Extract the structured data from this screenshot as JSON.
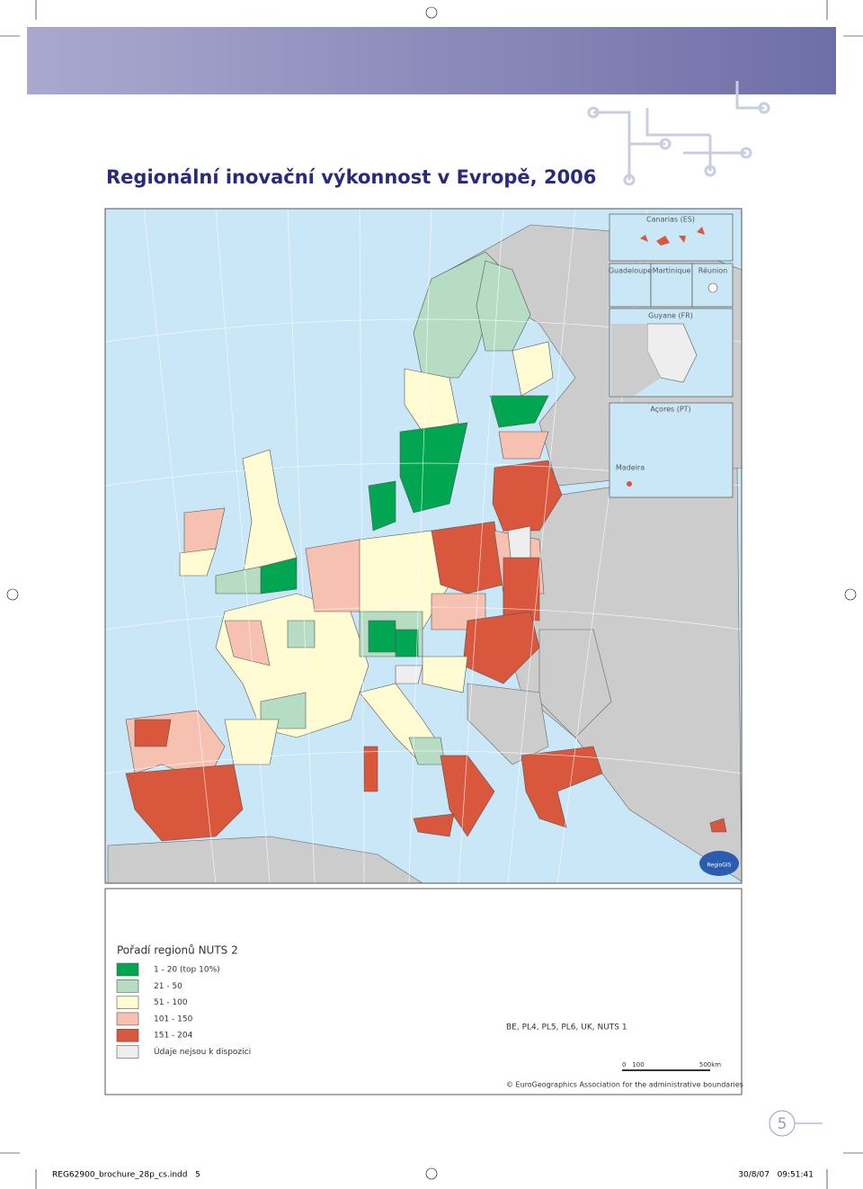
{
  "header": {
    "title": "Regionální inovační výkonnost v Evropě, 2006"
  },
  "map": {
    "insets": [
      "Canarias (ES)",
      "Guadeloupe",
      "Martinique",
      "Réunion",
      "Guyane (FR)",
      "Açores (PT)",
      "Madeira"
    ],
    "logo": "RegioGIS"
  },
  "legend": {
    "title": "Pořadí regionů NUTS 2",
    "items": [
      {
        "label": "1 - 20 (top 10%)",
        "color": "#00a651"
      },
      {
        "label": "21 - 50",
        "color": "#b6dcc3"
      },
      {
        "label": "51 - 100",
        "color": "#fffbd2"
      },
      {
        "label": "101 - 150",
        "color": "#f6c1b1"
      },
      {
        "label": "151 - 204",
        "color": "#d9573c"
      },
      {
        "label": "Údaje nejsou k dispozici",
        "color": "#eeeeee"
      }
    ],
    "note": "BE, PL4, PL5, PL6, UK, NUTS 1",
    "scale": [
      "0",
      "100",
      "500km"
    ],
    "copyright": "© EuroGeographics Association for the administrative boundaries"
  },
  "footer": {
    "page_number": "5",
    "file": "REG62900_brochure_28p_cs.indd   5",
    "timestamp": "30/8/07   09:51:41"
  }
}
